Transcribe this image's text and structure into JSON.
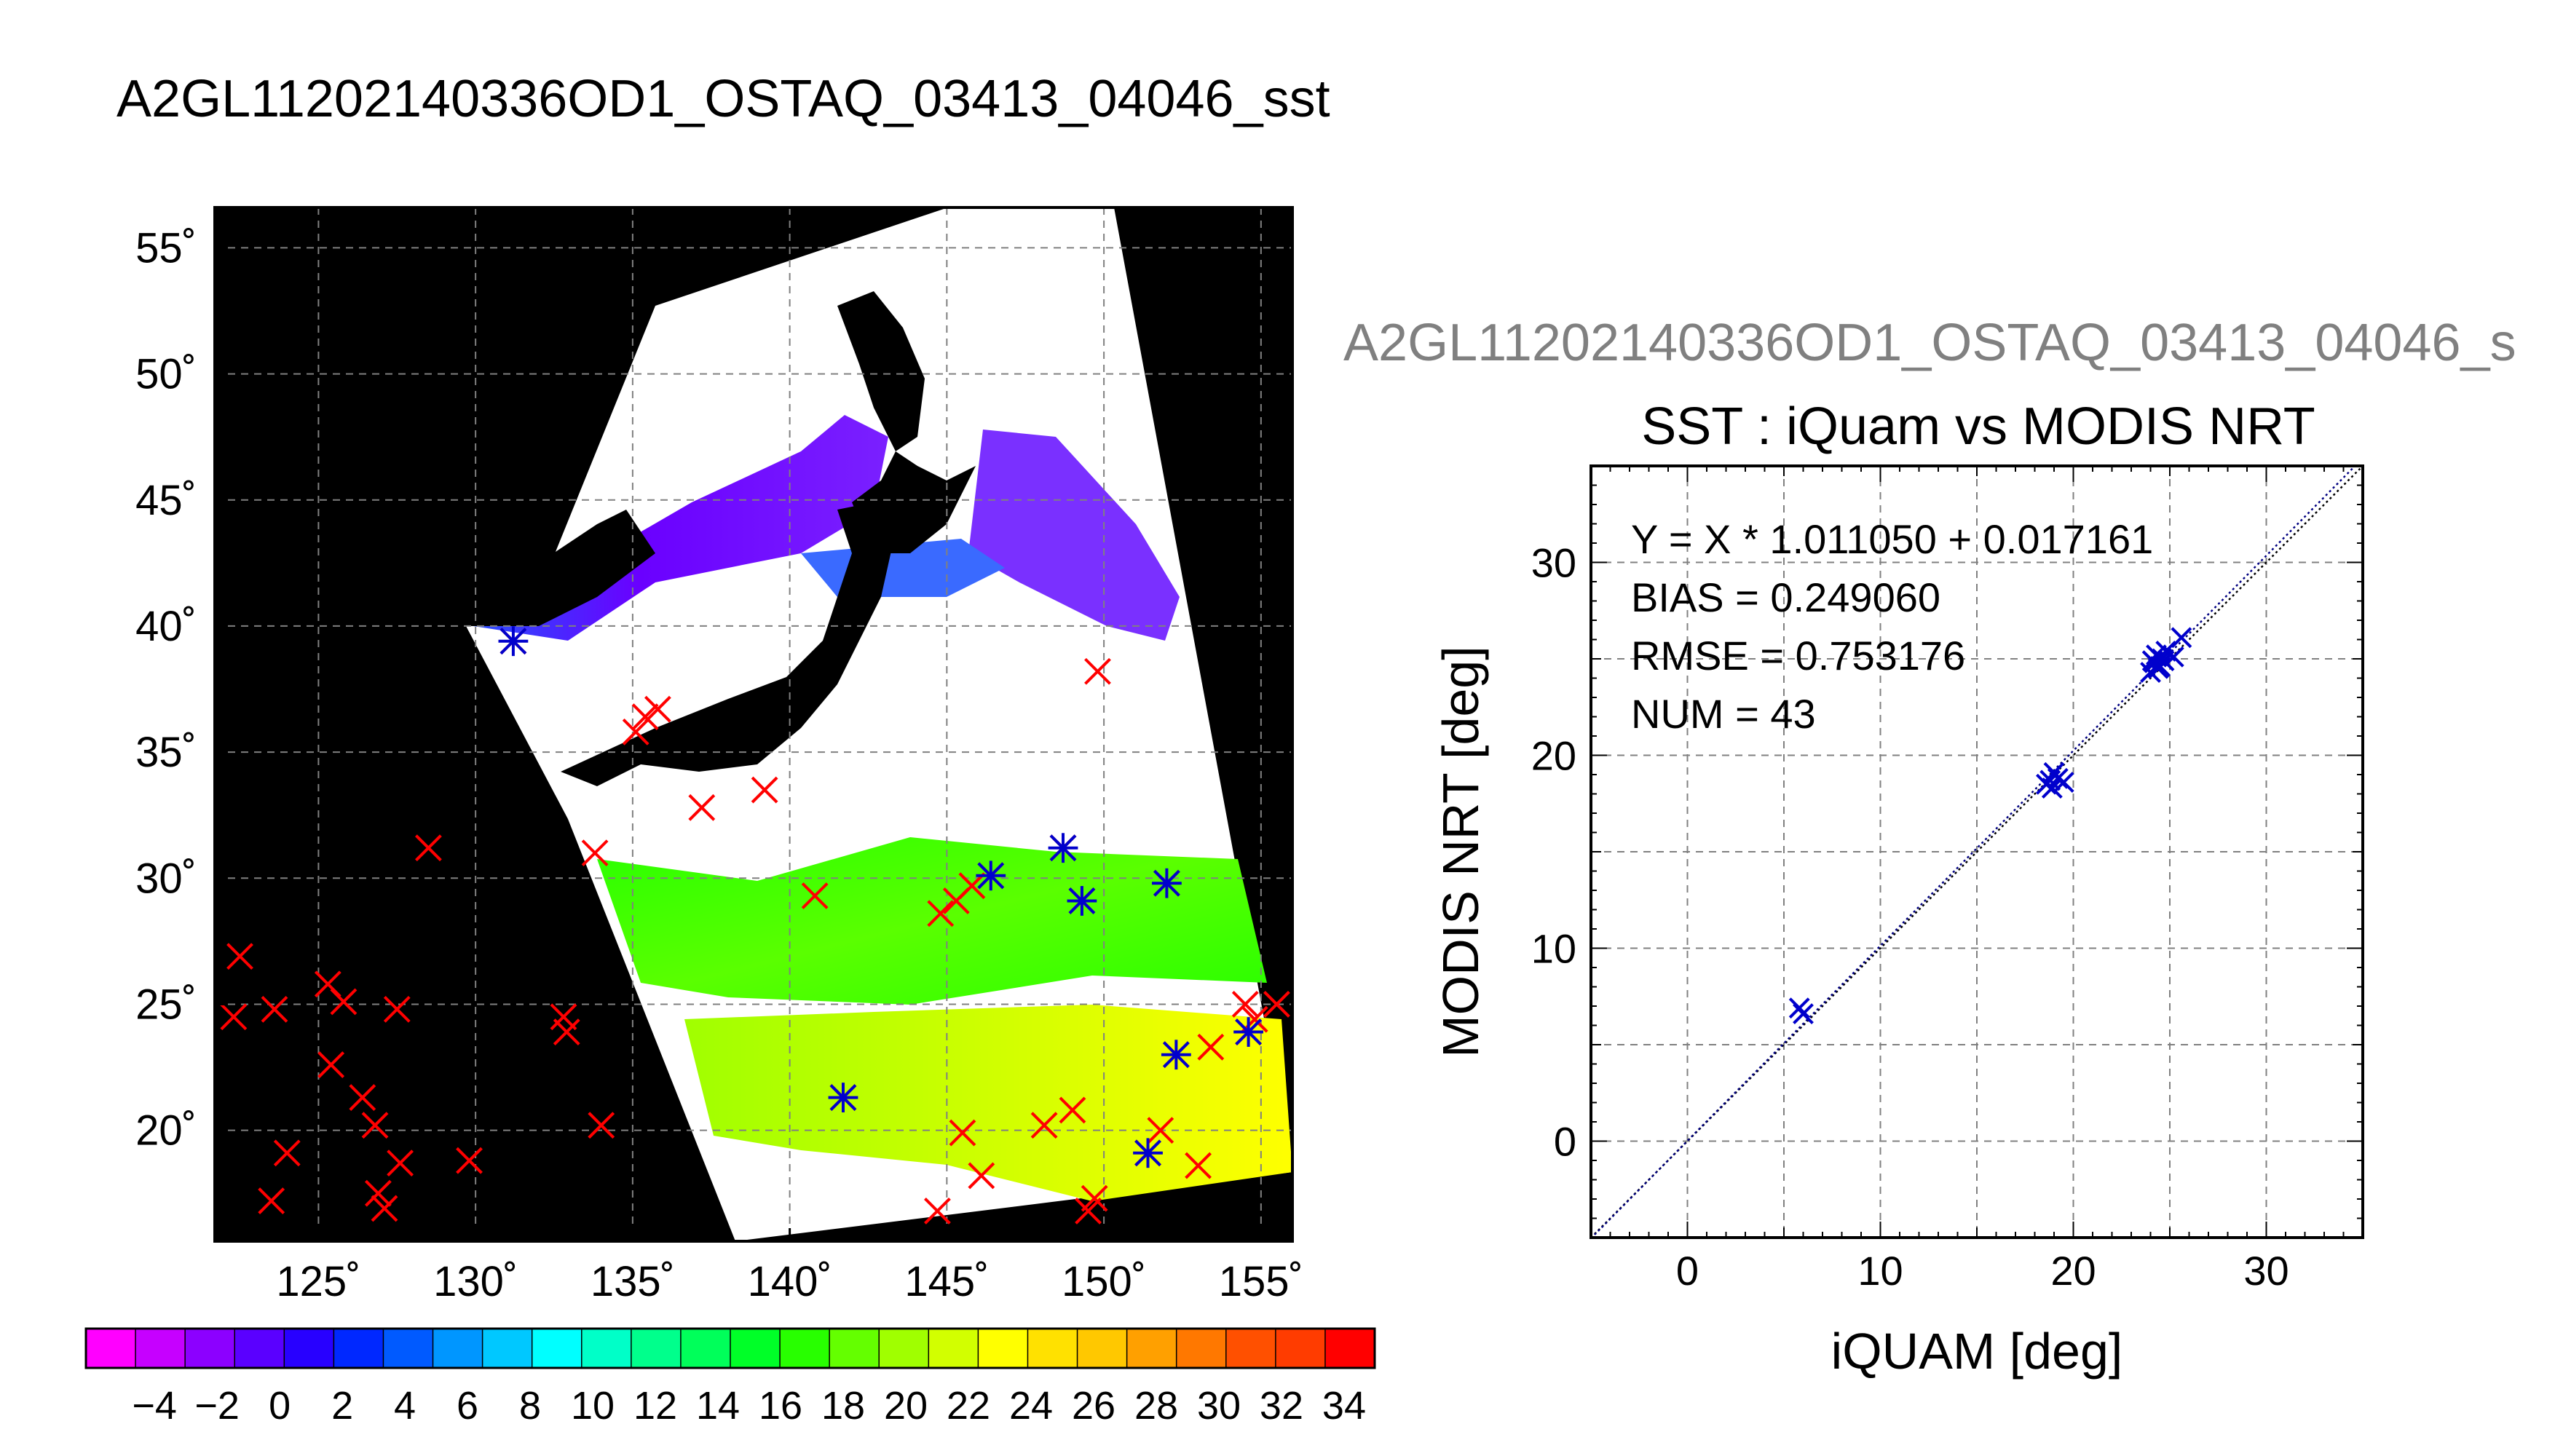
{
  "page_title": "A2GL11202140336OD1_OSTAQ_03413_04046_sst",
  "scatter_subtitle": "A2GL11202140336OD1_OSTAQ_03413_04046_s",
  "colors": {
    "land_background": "#000000",
    "cloud_mask": "#ffffff",
    "match_marker_red": "#ff0000",
    "match_marker_blue": "#0000cc",
    "fit_line": "#000080"
  },
  "chart_data": [
    {
      "type": "map",
      "x": [
        125,
        130,
        135,
        140,
        145,
        150,
        155
      ],
      "y": [
        20,
        25,
        30,
        35,
        40,
        45,
        50,
        55
      ],
      "xlim": [
        121.7,
        156.0
      ],
      "ylim": [
        15.6,
        56.6
      ],
      "grid": true,
      "x_tick_labels": [
        "125˚",
        "130˚",
        "135˚",
        "140˚",
        "145˚",
        "150˚",
        "155˚"
      ],
      "y_tick_labels": [
        "20˚",
        "25˚",
        "30˚",
        "35˚",
        "40˚",
        "45˚",
        "50˚",
        "55˚"
      ],
      "markers_in_situ": [
        [
          122.5,
          26.9
        ],
        [
          122.3,
          24.5
        ],
        [
          123.6,
          24.8
        ],
        [
          123.5,
          17.2
        ],
        [
          124.0,
          19.1
        ],
        [
          125.3,
          25.8
        ],
        [
          125.4,
          22.6
        ],
        [
          125.8,
          25.1
        ],
        [
          126.4,
          21.3
        ],
        [
          126.8,
          20.2
        ],
        [
          127.5,
          24.8
        ],
        [
          127.6,
          18.7
        ],
        [
          126.9,
          17.5
        ],
        [
          127.1,
          16.9
        ],
        [
          128.5,
          31.2
        ],
        [
          129.8,
          18.8
        ],
        [
          131.2,
          39.4
        ],
        [
          132.8,
          24.5
        ],
        [
          132.9,
          23.9
        ],
        [
          133.8,
          31.0
        ],
        [
          134.0,
          20.2
        ],
        [
          135.4,
          36.4
        ],
        [
          135.8,
          36.7
        ],
        [
          135.1,
          35.8
        ],
        [
          137.2,
          32.8
        ],
        [
          139.2,
          33.5
        ],
        [
          140.8,
          29.3
        ],
        [
          141.7,
          21.3
        ],
        [
          144.8,
          28.6
        ],
        [
          145.3,
          29.1
        ],
        [
          145.8,
          29.7
        ],
        [
          145.5,
          19.9
        ],
        [
          146.1,
          18.2
        ],
        [
          146.4,
          30.1
        ],
        [
          144.7,
          16.8
        ],
        [
          148.1,
          20.2
        ],
        [
          148.7,
          31.2
        ],
        [
          149.0,
          20.8
        ],
        [
          149.3,
          29.1
        ],
        [
          149.5,
          16.8
        ],
        [
          149.7,
          17.3
        ],
        [
          149.8,
          38.2
        ],
        [
          151.8,
          20.0
        ],
        [
          151.4,
          19.1
        ],
        [
          152.0,
          29.8
        ],
        [
          152.3,
          23.0
        ],
        [
          153.0,
          18.6
        ],
        [
          153.4,
          23.3
        ],
        [
          154.5,
          25.0
        ],
        [
          154.6,
          23.9
        ],
        [
          154.8,
          24.4
        ],
        [
          155.5,
          25.0
        ]
      ],
      "markers_modis_match": [
        [
          131.2,
          39.4
        ],
        [
          141.7,
          21.3
        ],
        [
          146.4,
          30.1
        ],
        [
          148.7,
          31.2
        ],
        [
          149.3,
          29.1
        ],
        [
          151.4,
          19.1
        ],
        [
          152.0,
          29.8
        ],
        [
          152.3,
          23.0
        ],
        [
          154.6,
          23.9
        ]
      ]
    },
    {
      "type": "colorbar",
      "tick_labels": [
        "−4",
        "−2",
        "0",
        "2",
        "4",
        "6",
        "8",
        "10",
        "12",
        "14",
        "16",
        "18",
        "20",
        "22",
        "24",
        "26",
        "28",
        "30",
        "32",
        "34"
      ],
      "colors": [
        "#ff00ff",
        "#c600ff",
        "#8c00ff",
        "#5a00ff",
        "#2800ff",
        "#0028ff",
        "#005aff",
        "#0096ff",
        "#00c8ff",
        "#00ffff",
        "#00ffc8",
        "#00ff8c",
        "#00ff5a",
        "#00ff28",
        "#28ff00",
        "#64ff00",
        "#a0ff00",
        "#d2ff00",
        "#ffff00",
        "#ffe100",
        "#ffc800",
        "#ffa000",
        "#ff7800",
        "#ff5000",
        "#ff3c00",
        "#ff0000"
      ]
    },
    {
      "type": "scatter",
      "title": "SST : iQuam vs MODIS NRT",
      "xlabel": "iQUAM [deg]",
      "ylabel": "MODIS NRT [deg]",
      "xlim": [
        -5,
        35
      ],
      "ylim": [
        -5,
        35
      ],
      "x_ticks": [
        0,
        10,
        20,
        30
      ],
      "y_ticks": [
        0,
        10,
        20,
        30
      ],
      "grid": true,
      "annotations": [
        "Y = X * 1.011050 + 0.017161",
        "BIAS = 0.249060",
        "RMSE = 0.753176",
        "NUM = 43"
      ],
      "fit": {
        "slope": 1.01105,
        "intercept": 0.017161
      },
      "points": [
        [
          5.8,
          6.9
        ],
        [
          6.0,
          6.6
        ],
        [
          18.6,
          18.5
        ],
        [
          18.9,
          18.3
        ],
        [
          19.0,
          19.1
        ],
        [
          19.2,
          18.8
        ],
        [
          19.5,
          18.6
        ],
        [
          18.8,
          18.7
        ],
        [
          24.0,
          24.3
        ],
        [
          24.2,
          24.8
        ],
        [
          24.3,
          25.2
        ],
        [
          24.5,
          24.6
        ],
        [
          24.6,
          25.0
        ],
        [
          24.7,
          24.9
        ],
        [
          24.4,
          24.5
        ],
        [
          24.8,
          25.4
        ],
        [
          25.2,
          25.1
        ],
        [
          25.6,
          26.1
        ],
        [
          24.1,
          24.9
        ]
      ]
    }
  ]
}
